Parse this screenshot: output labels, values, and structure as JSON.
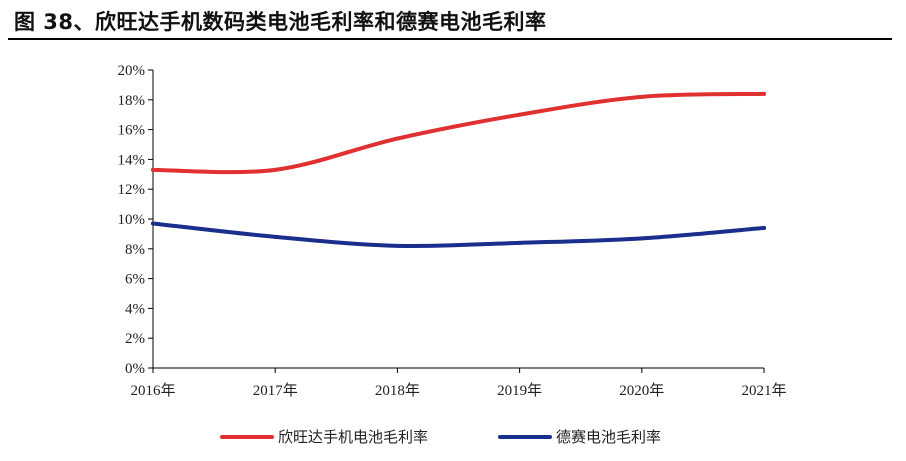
{
  "figure": {
    "title": "图 38、欣旺达手机数码类电池毛利率和德赛电池毛利率"
  },
  "colors": {
    "series_1": "#e03030",
    "series_2": "#1a2e8c",
    "axis": "#000000"
  },
  "chart_data": {
    "type": "line",
    "categories": [
      "2016年",
      "2017年",
      "2018年",
      "2019年",
      "2020年",
      "2021年"
    ],
    "series": [
      {
        "name": "欣旺达手机电池毛利率",
        "values": [
          13.3,
          13.3,
          15.4,
          17.0,
          18.2,
          18.4
        ]
      },
      {
        "name": "德赛电池毛利率",
        "values": [
          9.7,
          8.8,
          8.2,
          8.4,
          8.7,
          9.4
        ]
      }
    ],
    "y_ticks": [
      "0%",
      "2%",
      "4%",
      "6%",
      "8%",
      "10%",
      "12%",
      "14%",
      "16%",
      "18%",
      "20%"
    ],
    "ylim": [
      0,
      20
    ],
    "y_unit": "%",
    "grid": false,
    "legend_position": "bottom"
  }
}
